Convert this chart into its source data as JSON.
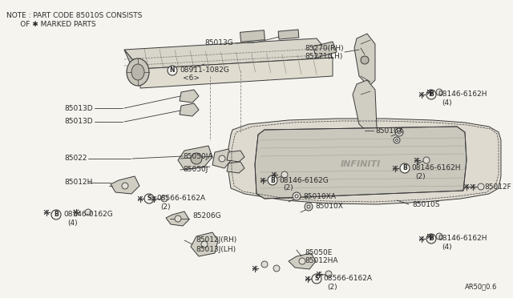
{
  "bg_color": "#f5f4ef",
  "line_color": "#3a3a3a",
  "text_color": "#2a2a2a",
  "title_note_line1": "NOTE : PART CODE 85010S CONSISTS",
  "title_note_line2": "      OF ✱ MARKED PARTS",
  "diagram_ref": "AR50⃝0.6",
  "fig_w": 6.4,
  "fig_h": 3.72,
  "dpi": 100
}
